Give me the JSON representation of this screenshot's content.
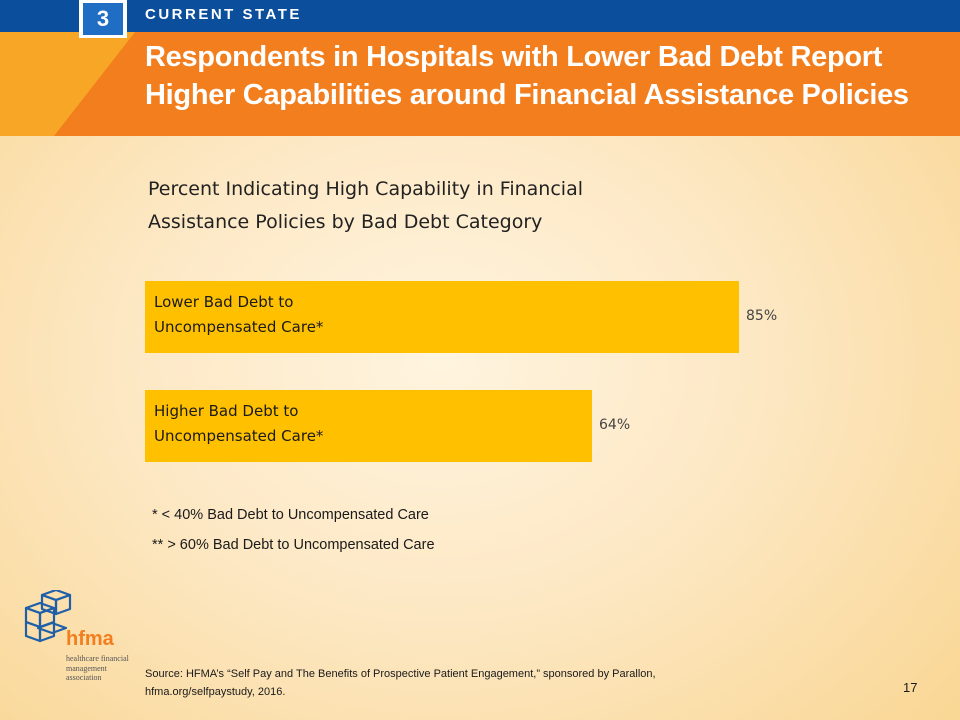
{
  "header": {
    "badge_number": "3",
    "section_label": "CURRENT STATE",
    "title": "Respondents in Hospitals with Lower Bad Debt Report Higher Capabilities around Financial Assistance Policies"
  },
  "chart_data": {
    "type": "bar",
    "orientation": "horizontal",
    "title": "Percent Indicating High Capability in Financial Assistance Policies by Bad Debt Category",
    "categories": [
      "Lower Bad Debt to\nUncompensated Care*",
      "Higher Bad Debt to\nUncompensated Care*"
    ],
    "values": [
      85,
      64
    ],
    "value_labels": [
      "85%",
      "64%"
    ],
    "xlim": [
      0,
      100
    ],
    "grid": false,
    "bar_color": "#ffc000"
  },
  "footnotes": [
    "*  < 40% Bad Debt to Uncompensated Care",
    "** > 60% Bad Debt to Uncompensated Care"
  ],
  "source": "Source: HFMA’s “Self Pay and The Benefits of Prospective Patient Engagement,” sponsored by Parallon,\nhfma.org/selfpaystudy, 2016.",
  "page_number": "17",
  "logo": {
    "wordmark": "hfma",
    "tagline": "healthcare financial management association"
  },
  "colors": {
    "header_blue": "#0a4e9c",
    "header_orange": "#f27e1e",
    "bar": "#ffc000"
  }
}
